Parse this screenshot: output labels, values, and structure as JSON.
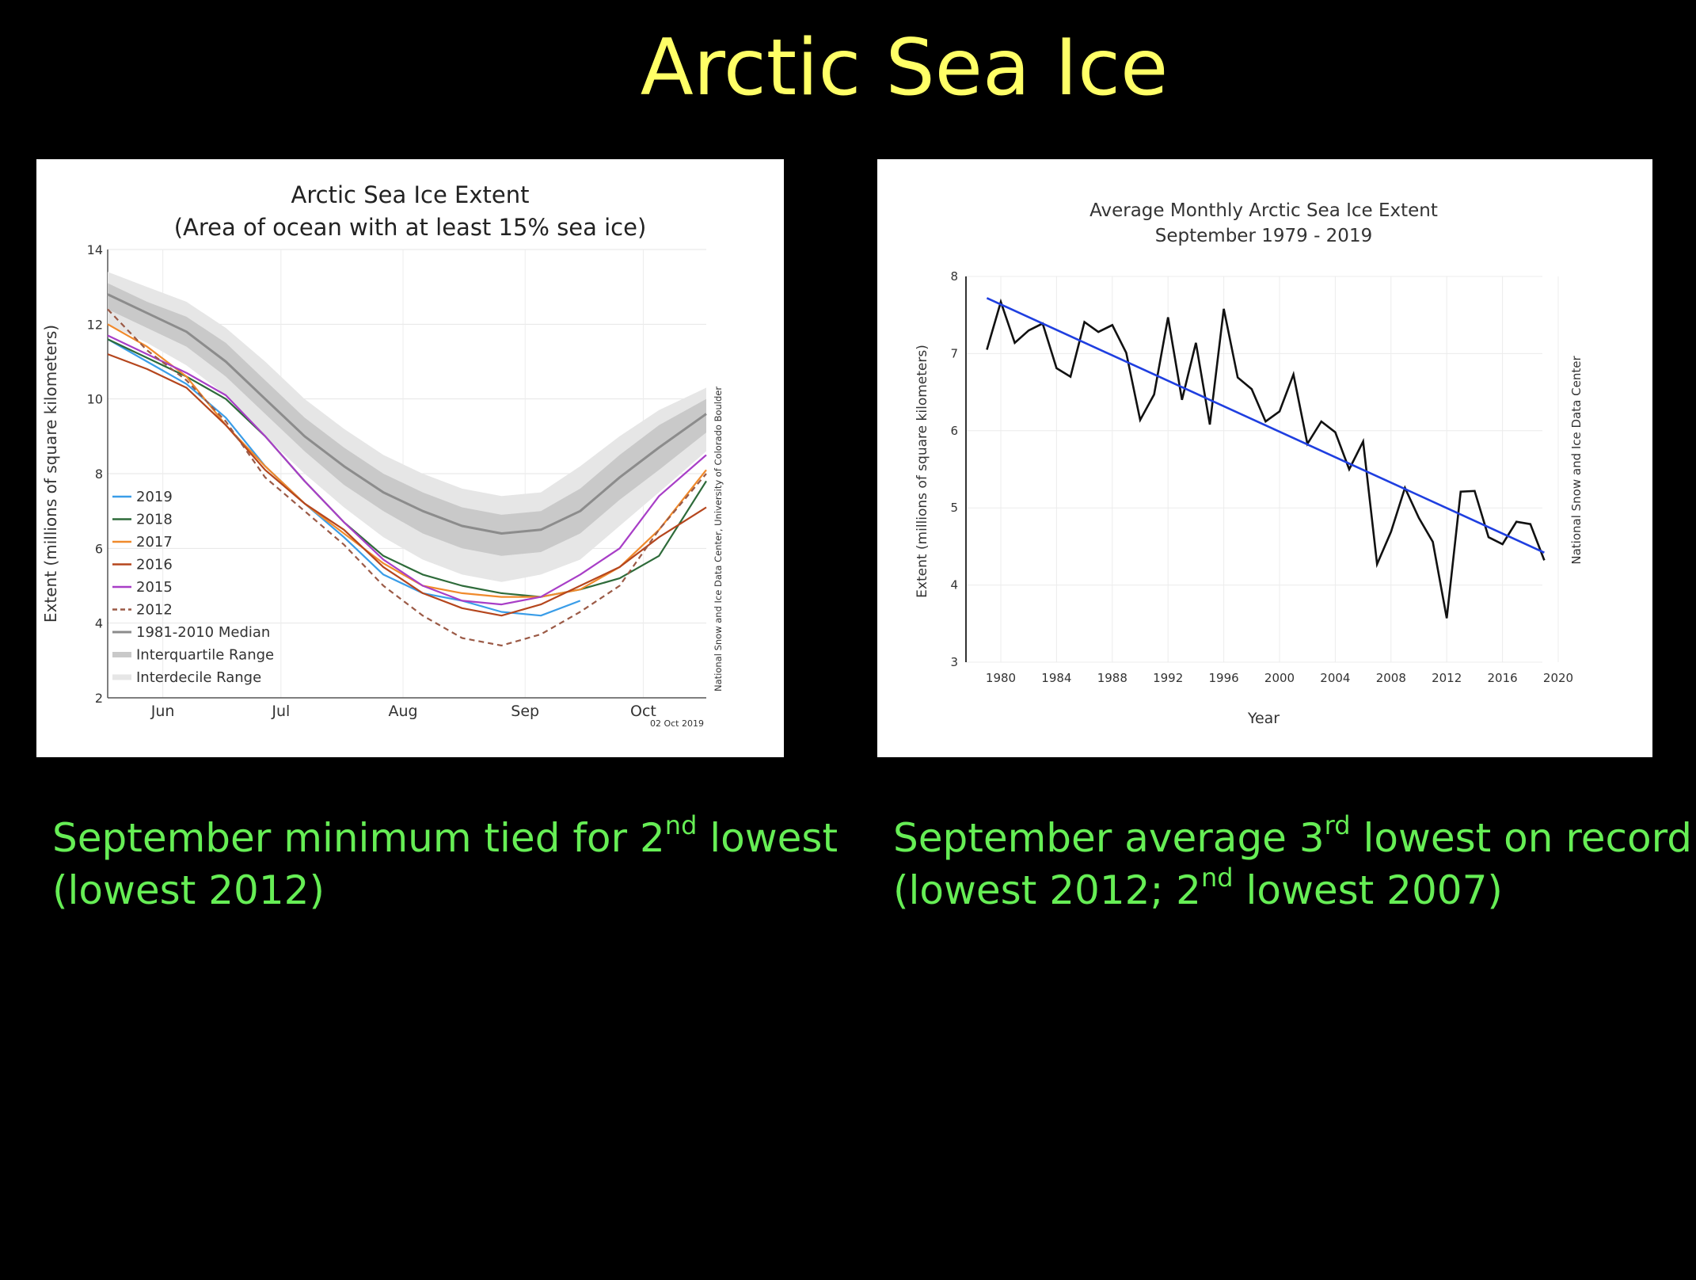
{
  "slide": {
    "title": "Arctic Sea Ice",
    "caption_left": {
      "pre": "September minimum tied for 2",
      "sup": "nd",
      "post": " lowest (lowest 2012)"
    },
    "caption_right": {
      "pre1": "September average 3",
      "sup1": "rd",
      "mid": " lowest on record (lowest 2012; 2",
      "sup2": "nd",
      "post": " lowest 2007)"
    }
  },
  "colors": {
    "background": "#000000",
    "title": "#ffff66",
    "caption": "#66ee55",
    "trend": "#1f3fe0"
  },
  "chart_data": [
    {
      "type": "line",
      "title": "Arctic Sea Ice Extent",
      "subtitle": "(Area of ocean with at least 15% sea ice)",
      "xlabel": "",
      "ylabel": "Extent (millions of square kilometers)",
      "ylim": [
        2,
        14
      ],
      "yticks": [
        2,
        4,
        6,
        8,
        10,
        12,
        14
      ],
      "xlim": [
        0,
        152
      ],
      "xtick_positions": [
        14,
        44,
        75,
        106,
        136
      ],
      "xticks": [
        "Jun",
        "Jul",
        "Aug",
        "Sep",
        "Oct"
      ],
      "credit": "National Snow and Ice Data Center, University of Colorado Boulder",
      "date_stamp": "02 Oct 2019",
      "grid": true,
      "legend_position": "lower-left",
      "legend": [
        "2019",
        "2018",
        "2017",
        "2016",
        "2015",
        "2012",
        "1981-2010 Median",
        "Interquartile Range",
        "Interdecile Range"
      ],
      "x": [
        0,
        10,
        20,
        30,
        40,
        50,
        60,
        70,
        80,
        90,
        100,
        110,
        120,
        130,
        140,
        152
      ],
      "series": [
        {
          "name": "2019",
          "color": "#3a9de8",
          "dash": false,
          "values": [
            11.6,
            11.0,
            10.4,
            9.5,
            8.2,
            7.2,
            6.3,
            5.3,
            4.8,
            4.6,
            4.3,
            4.2,
            4.6,
            null,
            null,
            null
          ]
        },
        {
          "name": "2018",
          "color": "#2e6b3a",
          "dash": false,
          "values": [
            11.6,
            11.1,
            10.6,
            10.0,
            9.0,
            7.8,
            6.7,
            5.8,
            5.3,
            5.0,
            4.8,
            4.7,
            4.9,
            5.2,
            5.8,
            7.8
          ]
        },
        {
          "name": "2017",
          "color": "#f08a2c",
          "dash": false,
          "values": [
            12.0,
            11.4,
            10.6,
            9.3,
            8.2,
            7.2,
            6.4,
            5.6,
            5.0,
            4.8,
            4.7,
            4.7,
            4.9,
            5.5,
            6.5,
            8.1
          ]
        },
        {
          "name": "2016",
          "color": "#b5461d",
          "dash": false,
          "values": [
            11.2,
            10.8,
            10.3,
            9.3,
            8.1,
            7.2,
            6.5,
            5.5,
            4.8,
            4.4,
            4.2,
            4.5,
            5.0,
            5.5,
            6.3,
            7.1
          ]
        },
        {
          "name": "2015",
          "color": "#a83ec7",
          "dash": false,
          "values": [
            11.7,
            11.2,
            10.7,
            10.1,
            9.0,
            7.8,
            6.7,
            5.7,
            5.0,
            4.6,
            4.5,
            4.7,
            5.3,
            6.0,
            7.4,
            8.5
          ]
        },
        {
          "name": "2012",
          "color": "#9b5a46",
          "dash": true,
          "values": [
            12.4,
            11.3,
            10.5,
            9.4,
            7.9,
            7.0,
            6.1,
            5.0,
            4.2,
            3.6,
            3.4,
            3.7,
            4.3,
            5.0,
            6.5,
            8.0
          ]
        },
        {
          "name": "1981-2010 Median",
          "color": "#8c8c8c",
          "dash": false,
          "values": [
            12.8,
            12.3,
            11.8,
            11.0,
            10.0,
            9.0,
            8.2,
            7.5,
            7.0,
            6.6,
            6.4,
            6.5,
            7.0,
            7.9,
            8.7,
            9.6
          ]
        }
      ],
      "interquartile_range": {
        "low": [
          12.4,
          11.9,
          11.4,
          10.6,
          9.6,
          8.6,
          7.7,
          7.0,
          6.4,
          6.0,
          5.8,
          5.9,
          6.4,
          7.3,
          8.1,
          9.1
        ],
        "high": [
          13.1,
          12.6,
          12.2,
          11.5,
          10.5,
          9.5,
          8.7,
          8.0,
          7.5,
          7.1,
          6.9,
          7.0,
          7.6,
          8.5,
          9.3,
          10.0
        ]
      },
      "interdecile_range": {
        "low": [
          12.0,
          11.5,
          10.9,
          10.1,
          9.0,
          8.0,
          7.1,
          6.3,
          5.7,
          5.3,
          5.1,
          5.3,
          5.7,
          6.6,
          7.5,
          8.6
        ],
        "high": [
          13.4,
          13.0,
          12.6,
          11.9,
          11.0,
          10.0,
          9.2,
          8.5,
          8.0,
          7.6,
          7.4,
          7.5,
          8.2,
          9.0,
          9.7,
          10.3
        ]
      }
    },
    {
      "type": "line",
      "title": "Average Monthly Arctic Sea Ice Extent",
      "subtitle": "September 1979 - 2019",
      "xlabel": "Year",
      "ylabel": "Extent (millions of square kilometers)",
      "xlim": [
        1977.5,
        2020
      ],
      "ylim": [
        3,
        8
      ],
      "xticks": [
        1980,
        1984,
        1988,
        1992,
        1996,
        2000,
        2004,
        2008,
        2012,
        2016,
        2020
      ],
      "yticks": [
        3,
        4,
        5,
        6,
        7,
        8
      ],
      "credit": "National Snow and Ice Data Center",
      "grid": true,
      "x": [
        1979,
        1980,
        1981,
        1982,
        1983,
        1984,
        1985,
        1986,
        1987,
        1988,
        1989,
        1990,
        1991,
        1992,
        1993,
        1994,
        1995,
        1996,
        1997,
        1998,
        1999,
        2000,
        2001,
        2002,
        2003,
        2004,
        2005,
        2006,
        2007,
        2008,
        2009,
        2010,
        2011,
        2012,
        2013,
        2014,
        2015,
        2016,
        2017,
        2018,
        2019
      ],
      "series": [
        {
          "name": "",
          "color": "#111111",
          "values": [
            7.05,
            7.67,
            7.14,
            7.3,
            7.39,
            6.81,
            6.7,
            7.41,
            7.28,
            7.37,
            7.01,
            6.14,
            6.47,
            7.47,
            6.4,
            7.14,
            6.08,
            7.58,
            6.69,
            6.54,
            6.12,
            6.25,
            6.73,
            5.83,
            6.12,
            5.98,
            5.5,
            5.86,
            4.27,
            4.69,
            5.26,
            4.87,
            4.56,
            3.57,
            5.21,
            5.22,
            4.62,
            4.53,
            4.82,
            4.79,
            4.32
          ]
        },
        {
          "name": "",
          "color": "#1f3fe0",
          "values": [
            7.72,
            null,
            null,
            null,
            null,
            null,
            null,
            null,
            null,
            null,
            null,
            null,
            null,
            null,
            null,
            null,
            null,
            null,
            null,
            null,
            null,
            null,
            null,
            null,
            null,
            null,
            null,
            null,
            null,
            null,
            null,
            null,
            null,
            null,
            null,
            null,
            null,
            null,
            null,
            null,
            4.42
          ]
        }
      ]
    }
  ]
}
